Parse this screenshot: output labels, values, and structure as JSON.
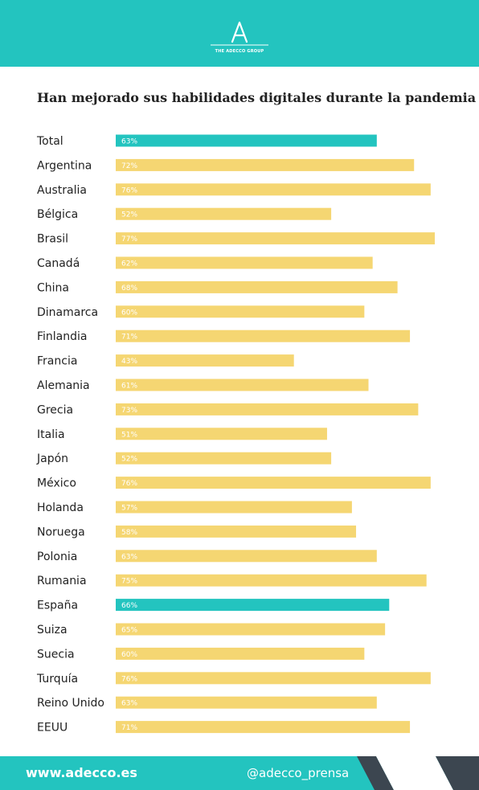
{
  "header": {
    "logo_text": "THE ADECCO GROUP",
    "background_color": "#23c4bf"
  },
  "chart_data": {
    "type": "bar",
    "orientation": "horizontal",
    "title": "Han mejorado sus habilidades digitales durante la pandemia",
    "categories": [
      "Total",
      "Argentina",
      "Australia",
      "Bélgica",
      "Brasil",
      "Canadá",
      "China",
      "Dinamarca",
      "Finlandia",
      "Francia",
      "Alemania",
      "Grecia",
      "Italia",
      "Japón",
      "México",
      "Holanda",
      "Noruega",
      "Polonia",
      "Rumania",
      "España",
      "Suiza",
      "Suecia",
      "Turquía",
      "Reino Unido",
      "EEUU"
    ],
    "values": [
      63,
      72,
      76,
      52,
      77,
      62,
      68,
      60,
      71,
      43,
      61,
      73,
      51,
      52,
      76,
      57,
      58,
      63,
      75,
      66,
      65,
      60,
      76,
      63,
      71
    ],
    "value_labels": [
      "63%",
      "72%",
      "76%",
      "52%",
      "77%",
      "62%",
      "68%",
      "60%",
      "71%",
      "43%",
      "61%",
      "73%",
      "51%",
      "52%",
      "76%",
      "57%",
      "58%",
      "63%",
      "75%",
      "66%",
      "65%",
      "60%",
      "76%",
      "63%",
      "71%"
    ],
    "highlighted": [
      "Total",
      "España"
    ],
    "xlim": [
      0,
      77
    ],
    "colors": {
      "default": "#f5d672",
      "highlight": "#23c4bf",
      "label_text": "#ffffff",
      "category_text": "#222222"
    },
    "grid": false,
    "legend": "none"
  },
  "footer": {
    "website": "www.adecco.es",
    "social": "@adecco_prensa",
    "background_color": "#23c4bf",
    "accent_color": "#3c4650"
  }
}
